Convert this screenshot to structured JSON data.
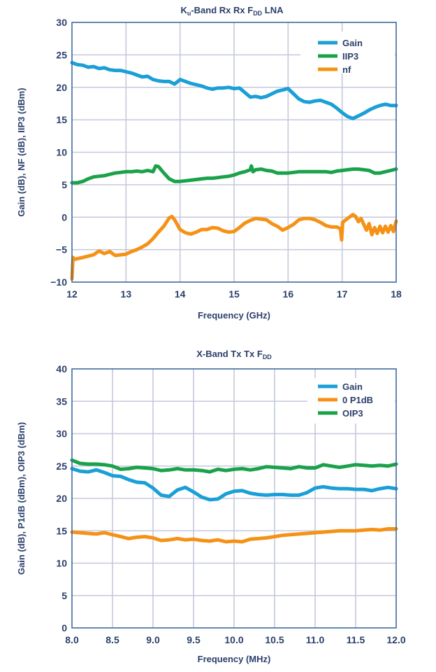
{
  "chart_data": [
    {
      "type": "line",
      "title": "K_u-Band Rx Rx F_DD LNA",
      "title_parts": [
        {
          "text": "K",
          "sub": false
        },
        {
          "text": "u",
          "sub": true
        },
        {
          "text": "-Band Rx Rx F",
          "sub": false
        },
        {
          "text": "DD",
          "sub": true
        },
        {
          "text": " LNA",
          "sub": false
        }
      ],
      "xlabel": "Frequency (GHz)",
      "ylabel": "Gain (dB), NF (dB), IIP3 (dBm)",
      "xlim": [
        12,
        18
      ],
      "ylim": [
        -10,
        30
      ],
      "xticks": [
        12,
        13,
        14,
        15,
        16,
        17,
        18
      ],
      "xtick_labels": [
        "12",
        "13",
        "14",
        "15",
        "16",
        "17",
        "18"
      ],
      "yticks": [
        -10,
        -5,
        0,
        5,
        10,
        15,
        20,
        25,
        30
      ],
      "ytick_labels": [
        "−10",
        "−5",
        "0",
        "5",
        "10",
        "15",
        "20",
        "25",
        "30"
      ],
      "grid": true,
      "legend_position": "top-right",
      "series": [
        {
          "name": "Gain",
          "color": "#1a9fd6",
          "x": [
            12.0,
            12.1,
            12.2,
            12.3,
            12.4,
            12.5,
            12.6,
            12.7,
            12.8,
            12.9,
            13.0,
            13.1,
            13.2,
            13.3,
            13.4,
            13.5,
            13.6,
            13.7,
            13.8,
            13.9,
            14.0,
            14.1,
            14.2,
            14.3,
            14.4,
            14.5,
            14.6,
            14.7,
            14.8,
            14.9,
            15.0,
            15.1,
            15.2,
            15.3,
            15.4,
            15.5,
            15.6,
            15.7,
            15.8,
            15.9,
            16.0,
            16.1,
            16.2,
            16.3,
            16.4,
            16.5,
            16.6,
            16.7,
            16.8,
            16.9,
            17.0,
            17.1,
            17.2,
            17.3,
            17.4,
            17.5,
            17.6,
            17.7,
            17.8,
            17.9,
            18.0
          ],
          "y": [
            23.8,
            23.5,
            23.4,
            23.1,
            23.2,
            22.9,
            23.0,
            22.7,
            22.6,
            22.6,
            22.4,
            22.2,
            21.9,
            21.6,
            21.7,
            21.2,
            21.0,
            20.9,
            20.9,
            20.5,
            21.2,
            20.9,
            20.6,
            20.4,
            20.2,
            19.9,
            19.7,
            19.9,
            19.9,
            20.0,
            19.8,
            19.9,
            19.2,
            18.5,
            18.6,
            18.4,
            18.6,
            19.0,
            19.4,
            19.6,
            19.8,
            19.0,
            18.2,
            17.8,
            17.7,
            17.9,
            18.0,
            17.7,
            17.4,
            16.8,
            16.1,
            15.5,
            15.2,
            15.6,
            16.0,
            16.5,
            16.9,
            17.2,
            17.4,
            17.2,
            17.2
          ]
        },
        {
          "name": "IIP3",
          "color": "#1aa24a",
          "x": [
            12.0,
            12.1,
            12.2,
            12.3,
            12.4,
            12.5,
            12.6,
            12.7,
            12.8,
            12.9,
            13.0,
            13.1,
            13.2,
            13.3,
            13.4,
            13.5,
            13.55,
            13.6,
            13.7,
            13.8,
            13.9,
            14.0,
            14.1,
            14.2,
            14.3,
            14.4,
            14.5,
            14.6,
            14.7,
            14.8,
            14.9,
            15.0,
            15.1,
            15.2,
            15.3,
            15.32,
            15.35,
            15.4,
            15.5,
            15.6,
            15.7,
            15.8,
            15.9,
            16.0,
            16.1,
            16.2,
            16.3,
            16.4,
            16.5,
            16.6,
            16.7,
            16.8,
            16.9,
            17.0,
            17.1,
            17.2,
            17.3,
            17.4,
            17.5,
            17.6,
            17.7,
            17.8,
            17.9,
            18.0
          ],
          "y": [
            5.3,
            5.3,
            5.5,
            5.9,
            6.2,
            6.3,
            6.4,
            6.6,
            6.8,
            6.9,
            7.0,
            7.0,
            7.1,
            7.0,
            7.2,
            7.0,
            7.9,
            7.8,
            6.8,
            5.9,
            5.5,
            5.5,
            5.6,
            5.7,
            5.8,
            5.9,
            6.0,
            6.0,
            6.1,
            6.2,
            6.3,
            6.5,
            6.8,
            7.0,
            7.3,
            7.9,
            7.0,
            7.3,
            7.4,
            7.2,
            7.1,
            6.8,
            6.8,
            6.8,
            6.9,
            7.0,
            7.0,
            7.0,
            7.0,
            7.0,
            7.0,
            6.9,
            7.1,
            7.2,
            7.3,
            7.4,
            7.4,
            7.3,
            7.2,
            6.8,
            6.8,
            7.0,
            7.2,
            7.4
          ]
        },
        {
          "name": "nf",
          "color": "#f59216",
          "x": [
            12.0,
            12.02,
            12.05,
            12.1,
            12.2,
            12.3,
            12.4,
            12.5,
            12.6,
            12.7,
            12.8,
            12.9,
            13.0,
            13.1,
            13.2,
            13.3,
            13.4,
            13.5,
            13.6,
            13.7,
            13.8,
            13.85,
            13.9,
            14.0,
            14.1,
            14.2,
            14.3,
            14.4,
            14.5,
            14.6,
            14.7,
            14.8,
            14.9,
            15.0,
            15.1,
            15.2,
            15.3,
            15.4,
            15.5,
            15.6,
            15.7,
            15.8,
            15.9,
            16.0,
            16.1,
            16.2,
            16.3,
            16.4,
            16.5,
            16.6,
            16.7,
            16.8,
            16.9,
            16.97,
            16.99,
            17.01,
            17.1,
            17.2,
            17.25,
            17.3,
            17.35,
            17.4,
            17.45,
            17.5,
            17.55,
            17.6,
            17.65,
            17.7,
            17.75,
            17.8,
            17.85,
            17.9,
            17.95,
            18.0
          ],
          "y": [
            -9.5,
            -6.2,
            -6.5,
            -6.4,
            -6.2,
            -6.0,
            -5.8,
            -5.2,
            -5.6,
            -5.3,
            -5.9,
            -5.8,
            -5.7,
            -5.3,
            -5.0,
            -4.6,
            -4.1,
            -3.3,
            -2.3,
            -1.4,
            -0.1,
            0.1,
            -0.4,
            -1.9,
            -2.4,
            -2.6,
            -2.3,
            -1.9,
            -1.9,
            -1.6,
            -1.7,
            -2.1,
            -2.3,
            -2.2,
            -1.6,
            -0.9,
            -0.5,
            -0.2,
            -0.3,
            -0.4,
            -1.0,
            -1.4,
            -2.0,
            -1.6,
            -1.1,
            -0.4,
            -0.2,
            -0.2,
            -0.4,
            -0.8,
            -1.3,
            -1.5,
            -1.5,
            -1.8,
            -3.5,
            -0.8,
            -0.2,
            0.4,
            0.1,
            -0.7,
            -0.2,
            -1.1,
            -2.0,
            -1.0,
            -2.7,
            -1.6,
            -2.5,
            -1.4,
            -2.4,
            -1.4,
            -2.3,
            -1.3,
            -2.2,
            -0.6
          ]
        }
      ]
    },
    {
      "type": "line",
      "title": "X-Band Tx Tx F_DD",
      "title_parts": [
        {
          "text": "X-Band Tx Tx F",
          "sub": false
        },
        {
          "text": "DD",
          "sub": true
        }
      ],
      "xlabel": "Frequency (MHz)",
      "ylabel": "Gain (dB), P1dB (dBm), OIP3 (dBm)",
      "xlim": [
        8.0,
        12.0
      ],
      "ylim": [
        0,
        40
      ],
      "xticks": [
        8.0,
        8.5,
        9.0,
        9.5,
        10.0,
        10.5,
        11.0,
        11.5,
        12.0
      ],
      "xtick_labels": [
        "8.0",
        "8.5",
        "9.0",
        "9.5",
        "10.0",
        "10.5",
        "11.0",
        "11.5",
        "12.0"
      ],
      "yticks": [
        0,
        5,
        10,
        15,
        20,
        25,
        30,
        35,
        40
      ],
      "ytick_labels": [
        "0",
        "5",
        "10",
        "15",
        "20",
        "25",
        "30",
        "35",
        "40"
      ],
      "grid": true,
      "legend_position": "top-right",
      "series": [
        {
          "name": "Gain",
          "color": "#1a9fd6",
          "x": [
            8.0,
            8.1,
            8.2,
            8.3,
            8.4,
            8.5,
            8.6,
            8.7,
            8.8,
            8.9,
            9.0,
            9.1,
            9.2,
            9.3,
            9.4,
            9.5,
            9.6,
            9.7,
            9.8,
            9.9,
            10.0,
            10.1,
            10.2,
            10.3,
            10.4,
            10.5,
            10.6,
            10.7,
            10.8,
            10.9,
            11.0,
            11.1,
            11.2,
            11.3,
            11.4,
            11.5,
            11.6,
            11.7,
            11.8,
            11.9,
            12.0
          ],
          "y": [
            24.6,
            24.2,
            24.1,
            24.4,
            24.0,
            23.5,
            23.4,
            22.9,
            22.5,
            22.4,
            21.6,
            20.5,
            20.3,
            21.3,
            21.7,
            21.0,
            20.2,
            19.8,
            19.9,
            20.7,
            21.1,
            21.2,
            20.8,
            20.6,
            20.5,
            20.6,
            20.6,
            20.5,
            20.5,
            20.9,
            21.6,
            21.8,
            21.6,
            21.5,
            21.5,
            21.4,
            21.4,
            21.2,
            21.5,
            21.7,
            21.5
          ]
        },
        {
          "name": "0 P1dB",
          "color": "#f59216",
          "x": [
            8.0,
            8.1,
            8.2,
            8.3,
            8.4,
            8.5,
            8.6,
            8.7,
            8.8,
            8.9,
            9.0,
            9.1,
            9.2,
            9.3,
            9.4,
            9.5,
            9.6,
            9.7,
            9.8,
            9.9,
            10.0,
            10.1,
            10.2,
            10.3,
            10.4,
            10.5,
            10.6,
            10.7,
            10.8,
            10.9,
            11.0,
            11.1,
            11.2,
            11.3,
            11.4,
            11.5,
            11.6,
            11.7,
            11.8,
            11.9,
            12.0
          ],
          "y": [
            14.8,
            14.7,
            14.6,
            14.5,
            14.7,
            14.4,
            14.1,
            13.8,
            14.0,
            14.1,
            13.9,
            13.5,
            13.6,
            13.8,
            13.6,
            13.7,
            13.5,
            13.4,
            13.6,
            13.3,
            13.4,
            13.3,
            13.7,
            13.8,
            13.9,
            14.1,
            14.3,
            14.4,
            14.5,
            14.6,
            14.7,
            14.8,
            14.9,
            15.0,
            15.0,
            15.0,
            15.1,
            15.2,
            15.1,
            15.3,
            15.3
          ]
        },
        {
          "name": "OIP3",
          "color": "#1aa24a",
          "x": [
            8.0,
            8.1,
            8.2,
            8.3,
            8.4,
            8.5,
            8.6,
            8.7,
            8.8,
            8.9,
            9.0,
            9.1,
            9.2,
            9.3,
            9.4,
            9.5,
            9.6,
            9.7,
            9.8,
            9.9,
            10.0,
            10.1,
            10.2,
            10.3,
            10.4,
            10.5,
            10.6,
            10.7,
            10.8,
            10.9,
            11.0,
            11.1,
            11.2,
            11.3,
            11.4,
            11.5,
            11.6,
            11.7,
            11.8,
            11.9,
            12.0
          ],
          "y": [
            25.9,
            25.4,
            25.3,
            25.3,
            25.2,
            25.0,
            24.5,
            24.6,
            24.8,
            24.7,
            24.6,
            24.3,
            24.4,
            24.6,
            24.4,
            24.4,
            24.3,
            24.1,
            24.5,
            24.3,
            24.5,
            24.6,
            24.4,
            24.6,
            24.9,
            24.8,
            24.7,
            24.6,
            24.9,
            24.7,
            24.7,
            25.2,
            25.0,
            24.8,
            25.0,
            25.2,
            25.1,
            25.0,
            25.1,
            25.0,
            25.3
          ]
        }
      ]
    }
  ]
}
